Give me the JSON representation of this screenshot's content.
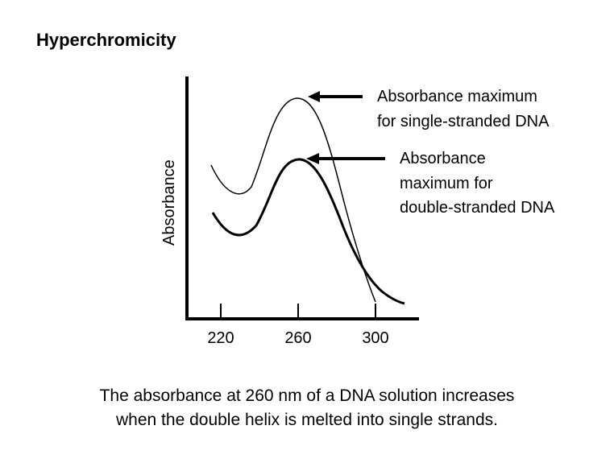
{
  "title": "Hyperchromicity",
  "y_axis_label": "Absorbance",
  "x_ticks": [
    "220",
    "260",
    "300"
  ],
  "annotations": {
    "single": [
      "Absorbance maximum",
      "for single-stranded DNA"
    ],
    "double": [
      "Absorbance",
      "maximum for",
      "double-stranded DNA"
    ]
  },
  "caption": [
    "The absorbance at 260 nm of a DNA solution increases",
    "when the double helix is melted into single strands."
  ],
  "curves": {
    "single_stranded": {
      "description": "upper curve, higher peak near 260"
    },
    "double_stranded": {
      "description": "lower curve, lower peak near 260"
    }
  }
}
